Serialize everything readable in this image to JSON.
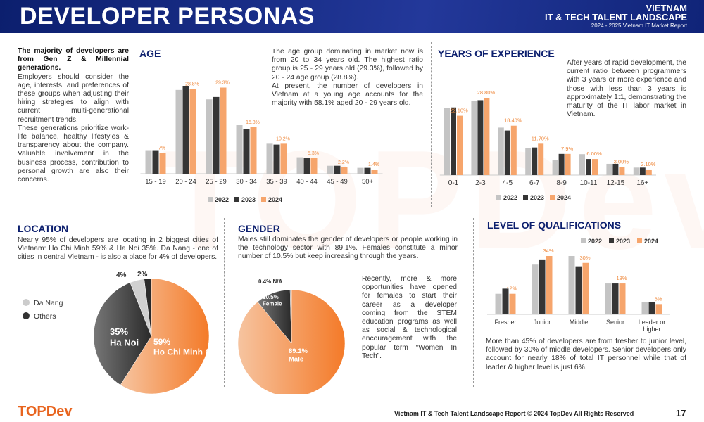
{
  "header": {
    "title": "DEVELOPER PERSONAS",
    "brand_line1": "VIETNAM",
    "brand_line2": "IT & TECH TALENT LANDSCAPE",
    "brand_line3": "2024 - 2025 Vietnam IT Market Report"
  },
  "intro": {
    "heading": "The majority of developers are from Gen Z & Millennial generations.",
    "body1": "Employers should consider the age, interests, and preferences of these groups when adjusting their hiring strategies to align with current multi-generational recruitment trends.",
    "body2": "These generations prioritize work-life balance, healthy lifestyles & transparency about the company. Valuable involvement in the business process, contribution to personal growth are also their concerns."
  },
  "age": {
    "title": "AGE",
    "desc1": "The age group dominating in market now is from 20 to 34 years old. The highest ratio group is 25 - 29 years old (29.3%), followed by 20 - 24 age group (28.8%).",
    "desc2": "At present, the number of developers in Vietnam at a young age accounts for the majority with 58.1% aged 20 - 29 years old."
  },
  "experience": {
    "title": "YEARS OF EXPERIENCE",
    "desc": "After years of rapid development, the current ratio between programmers with 3 years or more experience and those with less than 3 years is approximately 1:1, demonstrating the maturity of the IT labor market in Vietnam."
  },
  "location": {
    "title": "LOCATION",
    "desc": "Nearly 95% of developers are locating in 2 biggest cities of Vietnam: Ho Chi Minh 59% & Ha Noi 35%.  Da Nang - one of cities in central Vietnam - is also a place for 4% of developers.",
    "legend": [
      "Da Nang",
      "Others"
    ]
  },
  "gender": {
    "title": "GENDER",
    "desc": "Males still dominates the gender of developers or people working in the technology sector with 89.1%. Females constitute a minor number of 10.5% but keep increasing through the years.",
    "desc2": "Recently, more & more opportunities have opened for females to start their career as a developer coming from the STEM education programs as well as social & technological encouragement with the popular term “Women In Tech”."
  },
  "qualifications": {
    "title": "LEVEL OF QUALIFICATIONS",
    "desc": "More than 45% of developers are from fresher to junior level, followed by 30% of middle developers. Senior developers only account for nearly 18% of total IT personnel while that of leader & higher level is just 6%."
  },
  "colors": {
    "y2022": "#c4c4c4",
    "y2023": "#353535",
    "y2024": "#f6a56c",
    "label": "#ef8a3f",
    "navy": "#0c1f6e",
    "accent": "#e8641e"
  },
  "chart_data": [
    {
      "type": "bar",
      "categories": [
        "15 - 19",
        "20 - 24",
        "25 - 29",
        "30 - 34",
        "35 - 39",
        "40 - 44",
        "45 - 49",
        "50+"
      ],
      "series": [
        {
          "name": "2022",
          "values": [
            8.0,
            28.5,
            25.3,
            16.5,
            10.2,
            5.6,
            2.7,
            2.0
          ]
        },
        {
          "name": "2023",
          "values": [
            8.0,
            29.9,
            26.1,
            15.2,
            9.9,
            5.3,
            2.7,
            2.0
          ]
        },
        {
          "name": "2024",
          "values": [
            7,
            28.8,
            29.3,
            15.8,
            10.2,
            5.3,
            2.2,
            1.4
          ]
        }
      ],
      "data_labels": [
        "7%",
        "28.8%",
        "29.3%",
        "15.8%",
        "10.2%",
        "5.3%",
        "2.2%",
        "1.4%"
      ],
      "legend": "bottom"
    },
    {
      "type": "bar",
      "categories": [
        "0-1",
        "2-3",
        "4-5",
        "6-7",
        "8-9",
        "10-11",
        "12-15",
        "16+"
      ],
      "series": [
        {
          "name": "2022",
          "values": [
            24.9,
            27.6,
            17.7,
            10.0,
            5.7,
            7.8,
            4.2,
            2.8
          ]
        },
        {
          "name": "2023",
          "values": [
            25.2,
            27.9,
            16.6,
            10.3,
            7.9,
            6.0,
            4.2,
            2.8
          ]
        },
        {
          "name": "2024",
          "values": [
            22.1,
            28.8,
            18.4,
            11.7,
            7.9,
            6.0,
            3.0,
            2.1
          ]
        }
      ],
      "data_labels": [
        "22.10%",
        "28.80%",
        "18.40%",
        "11.70%",
        "7.9%",
        "6.00%",
        "3.00%",
        "2.10%"
      ],
      "legend": "bottom"
    },
    {
      "type": "bar",
      "categories": [
        "Fresher",
        "Junior",
        "Middle",
        "Senior",
        "Leader or higher"
      ],
      "series": [
        {
          "name": "2022",
          "values": [
            12,
            29,
            34,
            18,
            7
          ]
        },
        {
          "name": "2023",
          "values": [
            15,
            32,
            28,
            18,
            7
          ]
        },
        {
          "name": "2024",
          "values": [
            12,
            34,
            30,
            18,
            6
          ]
        }
      ],
      "data_labels": [
        "12%",
        "34%",
        "30%",
        "18%",
        "6%"
      ],
      "legend": "top"
    },
    {
      "type": "pie",
      "slices": [
        {
          "label": "Ho Chi Minh City",
          "value": 59,
          "text": "59%"
        },
        {
          "label": "Ha Noi",
          "value": 35,
          "text": "35%"
        },
        {
          "label": "Da Nang",
          "value": 4,
          "text": "4%"
        },
        {
          "label": "Others",
          "value": 2,
          "text": "2%"
        }
      ]
    },
    {
      "type": "pie",
      "slices": [
        {
          "label": "Male",
          "value": 89.1,
          "text": "89.1%"
        },
        {
          "label": "Female",
          "value": 10.5,
          "text": "10.5%"
        },
        {
          "label": "N/A",
          "value": 0.4,
          "text": "0.4% N/A"
        }
      ]
    }
  ],
  "footer": {
    "logo": "TOPDev",
    "text": "Vietnam IT & Tech Talent Landscape Report © 2024 TopDev All Rights Reserved",
    "page": "17"
  }
}
